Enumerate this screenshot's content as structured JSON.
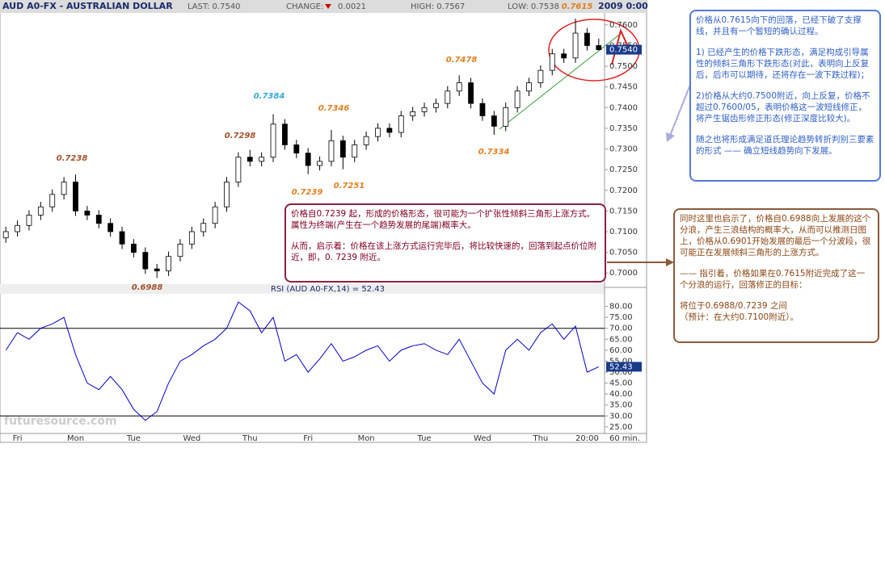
{
  "header": {
    "symbol": "AUD A0-FX - AUSTRALIAN DOLLAR",
    "last": "LAST: 0.7540",
    "change_label": "CHANGE:",
    "change": "0.0021",
    "high": "HIGH: 0.7567",
    "low": "LOW: 0.7538",
    "time": "2009 0:00"
  },
  "watermark": "futuresource.com",
  "chart_data": [
    {
      "type": "candlestick",
      "up_color": "#ffffff",
      "down_color": "#000000",
      "open": [
        0.7085,
        0.71,
        0.7115,
        0.714,
        0.716,
        0.719,
        0.722,
        0.715,
        0.714,
        0.712,
        0.71,
        0.707,
        0.705,
        0.701,
        0.7005,
        0.704,
        0.707,
        0.71,
        0.712,
        0.716,
        0.722,
        0.728,
        0.727,
        0.728,
        0.736,
        0.731,
        0.729,
        0.726,
        0.727,
        0.732,
        0.728,
        0.731,
        0.733,
        0.735,
        0.734,
        0.738,
        0.739,
        0.74,
        0.741,
        0.744,
        0.746,
        0.741,
        0.738,
        0.7355,
        0.74,
        0.744,
        0.746,
        0.749,
        0.753,
        0.752,
        0.758,
        0.755
      ],
      "high": [
        0.7112,
        0.7127,
        0.7152,
        0.7172,
        0.7202,
        0.7232,
        0.7238,
        0.7162,
        0.7152,
        0.7132,
        0.7112,
        0.7082,
        0.7062,
        0.7022,
        0.7052,
        0.7082,
        0.7112,
        0.7132,
        0.7172,
        0.7232,
        0.7292,
        0.7298,
        0.7292,
        0.7384,
        0.7372,
        0.7322,
        0.7302,
        0.7282,
        0.7346,
        0.7332,
        0.7322,
        0.7342,
        0.7362,
        0.7362,
        0.7392,
        0.7402,
        0.7412,
        0.7422,
        0.7452,
        0.7478,
        0.7472,
        0.7422,
        0.7392,
        0.7412,
        0.7452,
        0.7472,
        0.7502,
        0.7542,
        0.7542,
        0.7615,
        0.7592,
        0.7567
      ],
      "low": [
        0.7073,
        0.7088,
        0.7103,
        0.7128,
        0.7148,
        0.7178,
        0.7138,
        0.7128,
        0.7108,
        0.7088,
        0.7058,
        0.7038,
        0.6998,
        0.6988,
        0.6993,
        0.7028,
        0.7058,
        0.7088,
        0.7108,
        0.7148,
        0.7208,
        0.7258,
        0.7258,
        0.7268,
        0.7298,
        0.7278,
        0.7239,
        0.7248,
        0.7258,
        0.7251,
        0.7268,
        0.7298,
        0.7318,
        0.7328,
        0.7328,
        0.7368,
        0.7378,
        0.7388,
        0.7398,
        0.7428,
        0.7398,
        0.7368,
        0.7334,
        0.7343,
        0.7388,
        0.7428,
        0.7448,
        0.7478,
        0.7508,
        0.7508,
        0.7538,
        0.7538
      ],
      "close": [
        0.71,
        0.7115,
        0.714,
        0.716,
        0.719,
        0.722,
        0.715,
        0.714,
        0.712,
        0.71,
        0.707,
        0.705,
        0.701,
        0.7005,
        0.704,
        0.707,
        0.71,
        0.712,
        0.716,
        0.722,
        0.728,
        0.727,
        0.728,
        0.736,
        0.731,
        0.729,
        0.726,
        0.727,
        0.732,
        0.728,
        0.731,
        0.733,
        0.735,
        0.734,
        0.738,
        0.739,
        0.74,
        0.741,
        0.744,
        0.746,
        0.741,
        0.738,
        0.7355,
        0.74,
        0.744,
        0.746,
        0.749,
        0.753,
        0.752,
        0.758,
        0.755,
        0.754
      ],
      "ylim": [
        0.6977,
        0.7627
      ],
      "yticks": [
        {
          "value": 0.7,
          "label": "0.7000"
        },
        {
          "value": 0.705,
          "label": "0.7050"
        },
        {
          "value": 0.71,
          "label": "0.7100"
        },
        {
          "value": 0.715,
          "label": "0.7150"
        },
        {
          "value": 0.72,
          "label": "0.7200"
        },
        {
          "value": 0.725,
          "label": "0.7250"
        },
        {
          "value": 0.73,
          "label": "0.7300"
        },
        {
          "value": 0.735,
          "label": "0.7350"
        },
        {
          "value": 0.74,
          "label": "0.7400"
        },
        {
          "value": 0.745,
          "label": "0.7450"
        },
        {
          "value": 0.75,
          "label": "0.7500"
        },
        {
          "value": 0.755,
          "label": "0.7550"
        },
        {
          "value": 0.76,
          "label": "0.7600"
        }
      ],
      "last_value": 0.754,
      "last_label": "0.7540",
      "annotations": [
        {
          "text": "0.7238",
          "color": "#a0522d"
        },
        {
          "text": "0.6988",
          "color": "#a0522d"
        },
        {
          "text": "0.7298",
          "color": "#a0522d"
        },
        {
          "text": "0.7384",
          "color": "#33aadd"
        },
        {
          "text": "0.7346",
          "color": "#e08020"
        },
        {
          "text": "0.7239",
          "color": "#e08020"
        },
        {
          "text": "0.7251",
          "color": "#e08020"
        },
        {
          "text": "0.7478",
          "color": "#e08020"
        },
        {
          "text": "0.7334",
          "color": "#e08020"
        },
        {
          "text": "0.7615",
          "color": "#e08020"
        }
      ]
    },
    {
      "type": "line",
      "title": "RSI (AUD A0-FX,14) = 52.43",
      "color": "#0000cc",
      "categories": [
        null,
        "Fri",
        null,
        null,
        null,
        null,
        "Mon",
        null,
        null,
        null,
        null,
        "Tue",
        null,
        null,
        null,
        null,
        "Wed",
        null,
        null,
        null,
        null,
        "Thu",
        null,
        null,
        null,
        null,
        "Fri",
        null,
        null,
        null,
        null,
        "Mon",
        null,
        null,
        null,
        null,
        "Tue",
        null,
        null,
        null,
        null,
        "Wed",
        null,
        null,
        null,
        null,
        "Thu",
        null,
        null,
        null,
        "20:00",
        null
      ],
      "values": [
        60,
        68,
        65,
        70,
        72,
        75,
        58,
        45,
        42,
        48,
        42,
        33,
        28,
        32,
        45,
        55,
        58,
        62,
        65,
        70,
        82,
        78,
        68,
        75,
        55,
        58,
        50,
        56,
        63,
        55,
        57,
        60,
        62,
        55,
        60,
        62,
        63,
        60,
        58,
        65,
        55,
        45,
        40,
        60,
        65,
        60,
        68,
        72,
        65,
        71,
        50,
        52.43
      ],
      "x_unit": "60 min.",
      "ylim": [
        22,
        85
      ],
      "yticks": [
        {
          "value": 25,
          "label": "25.00"
        },
        {
          "value": 30,
          "label": "30.00"
        },
        {
          "value": 35,
          "label": "35.00"
        },
        {
          "value": 40,
          "label": "40.00"
        },
        {
          "value": 45,
          "label": "45.00"
        },
        {
          "value": 50,
          "label": "50.00"
        },
        {
          "value": 55,
          "label": "55.00"
        },
        {
          "value": 60,
          "label": "60.00"
        },
        {
          "value": 65,
          "label": "65.00"
        },
        {
          "value": 70,
          "label": "70.00"
        },
        {
          "value": 75,
          "label": "75.00"
        },
        {
          "value": 80,
          "label": "80.00"
        }
      ],
      "hlines": [
        70,
        30
      ],
      "last_value": 52.43
    }
  ],
  "notes": [
    {
      "color": "#2f5fc4",
      "paragraphs": [
        "价格从0.7615向下的回落，已经下破了支撑线，并且有一个暂短的确认过程。",
        "1) 已经产生的价格下跌形态，满足构成引导属性的倾斜三角形下跌形态(对此，表明向上反复后，后市可以期待，还将存在一波下跌过程)；",
        "2)价格从大约0.7500附近，向上反复，价格不超过0.7600/05，表明价格这一波短线修正，将产生锯齿形修正形态(修正深度比较大)。",
        "随之也将形成满足道氏理论趋势转折判别三要素的形式 —— 确立短线趋势向下发展。"
      ]
    },
    {
      "color": "#8b4513",
      "paragraphs": [
        "同时这里也启示了，价格自0.6988向上发展的这个分浪，产生三浪结构的概率大，从而可以推测日图上，价格从0.6901开始发展的最后一个分波段，很可能正在发展倾斜三角形的上涨方式。",
        "—— 指引着，价格如果在0.7615附近完成了这一个分浪的运行，回落修正的目标：",
        "将位于0.6988/0.7239 之间\n（预计：在大约0.7100附近）。"
      ]
    },
    {
      "color": "#800020",
      "paragraphs": [
        "价格自0.7239 起，形成的价格形态，很可能为一个扩张性倾斜三角形上涨方式。\n属性为终端(产生在一个趋势发展的尾端)概率大。",
        "从而，启示着：价格在该上涨方式运行完毕后，将比较快速的，回落到起点价位附近，即，0. 7239 附近。"
      ]
    }
  ]
}
